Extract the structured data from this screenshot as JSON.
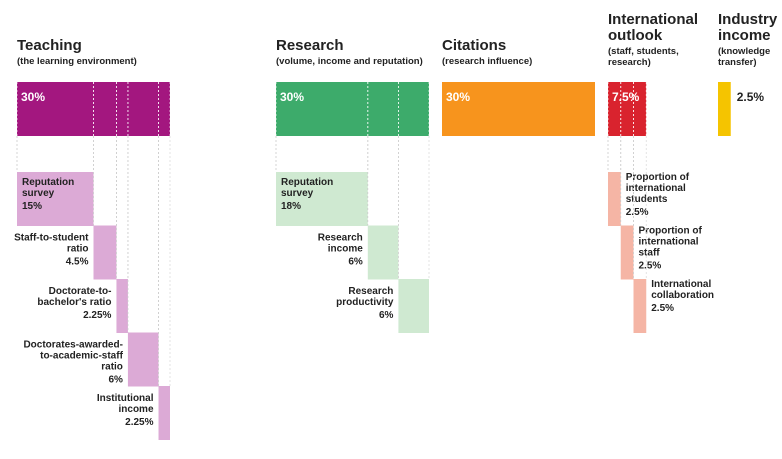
{
  "pillars": [
    {
      "title": [
        "Teaching"
      ],
      "subtitle": [
        "(the learning environment)"
      ],
      "weight": "30%",
      "color": "#a3177f",
      "sub_color": "#dcaad6",
      "subs": [
        {
          "label": [
            "Reputation",
            "survey"
          ],
          "weight": "15%"
        },
        {
          "label": [
            "Staff-to-student",
            "ratio"
          ],
          "weight": "4.5%"
        },
        {
          "label": [
            "Doctorate-to-",
            "bachelor's ratio"
          ],
          "weight": "2.25%"
        },
        {
          "label": [
            "Doctorates-awarded-",
            "to-academic-staff",
            "ratio"
          ],
          "weight": "6%"
        },
        {
          "label": [
            "Institutional",
            "income"
          ],
          "weight": "2.25%"
        }
      ]
    },
    {
      "title": [
        "Research"
      ],
      "subtitle": [
        "(volume, income and reputation)"
      ],
      "weight": "30%",
      "color": "#3dab6b",
      "sub_color": "#cfe9d1",
      "subs": [
        {
          "label": [
            "Reputation",
            "survey"
          ],
          "weight": "18%"
        },
        {
          "label": [
            "Research",
            "income"
          ],
          "weight": "6%"
        },
        {
          "label": [
            "Research",
            "productivity"
          ],
          "weight": "6%"
        }
      ]
    },
    {
      "title": [
        "Citations"
      ],
      "subtitle": [
        "(research influence)"
      ],
      "weight": "30%",
      "color": "#f7941d",
      "sub_color": "#fcd9ae",
      "subs": []
    },
    {
      "title": [
        "International",
        "outlook"
      ],
      "subtitle": [
        "(staff, students,",
        "research)"
      ],
      "weight": "7.5%",
      "color": "#d9232e",
      "sub_color": "#f5b5a5",
      "subs": [
        {
          "label": [
            "Proportion of",
            "international",
            "students"
          ],
          "weight": "2.5%"
        },
        {
          "label": [
            "Proportion of",
            "international",
            "staff"
          ],
          "weight": "2.5%"
        },
        {
          "label": [
            "International",
            "collaboration"
          ],
          "weight": "2.5%"
        }
      ]
    },
    {
      "title": [
        "Industry",
        "income"
      ],
      "subtitle": [
        "(knowledge",
        "transfer)"
      ],
      "weight": "2.5%",
      "color": "#f5c400",
      "sub_color": "#fbe8a0",
      "subs": []
    }
  ]
}
